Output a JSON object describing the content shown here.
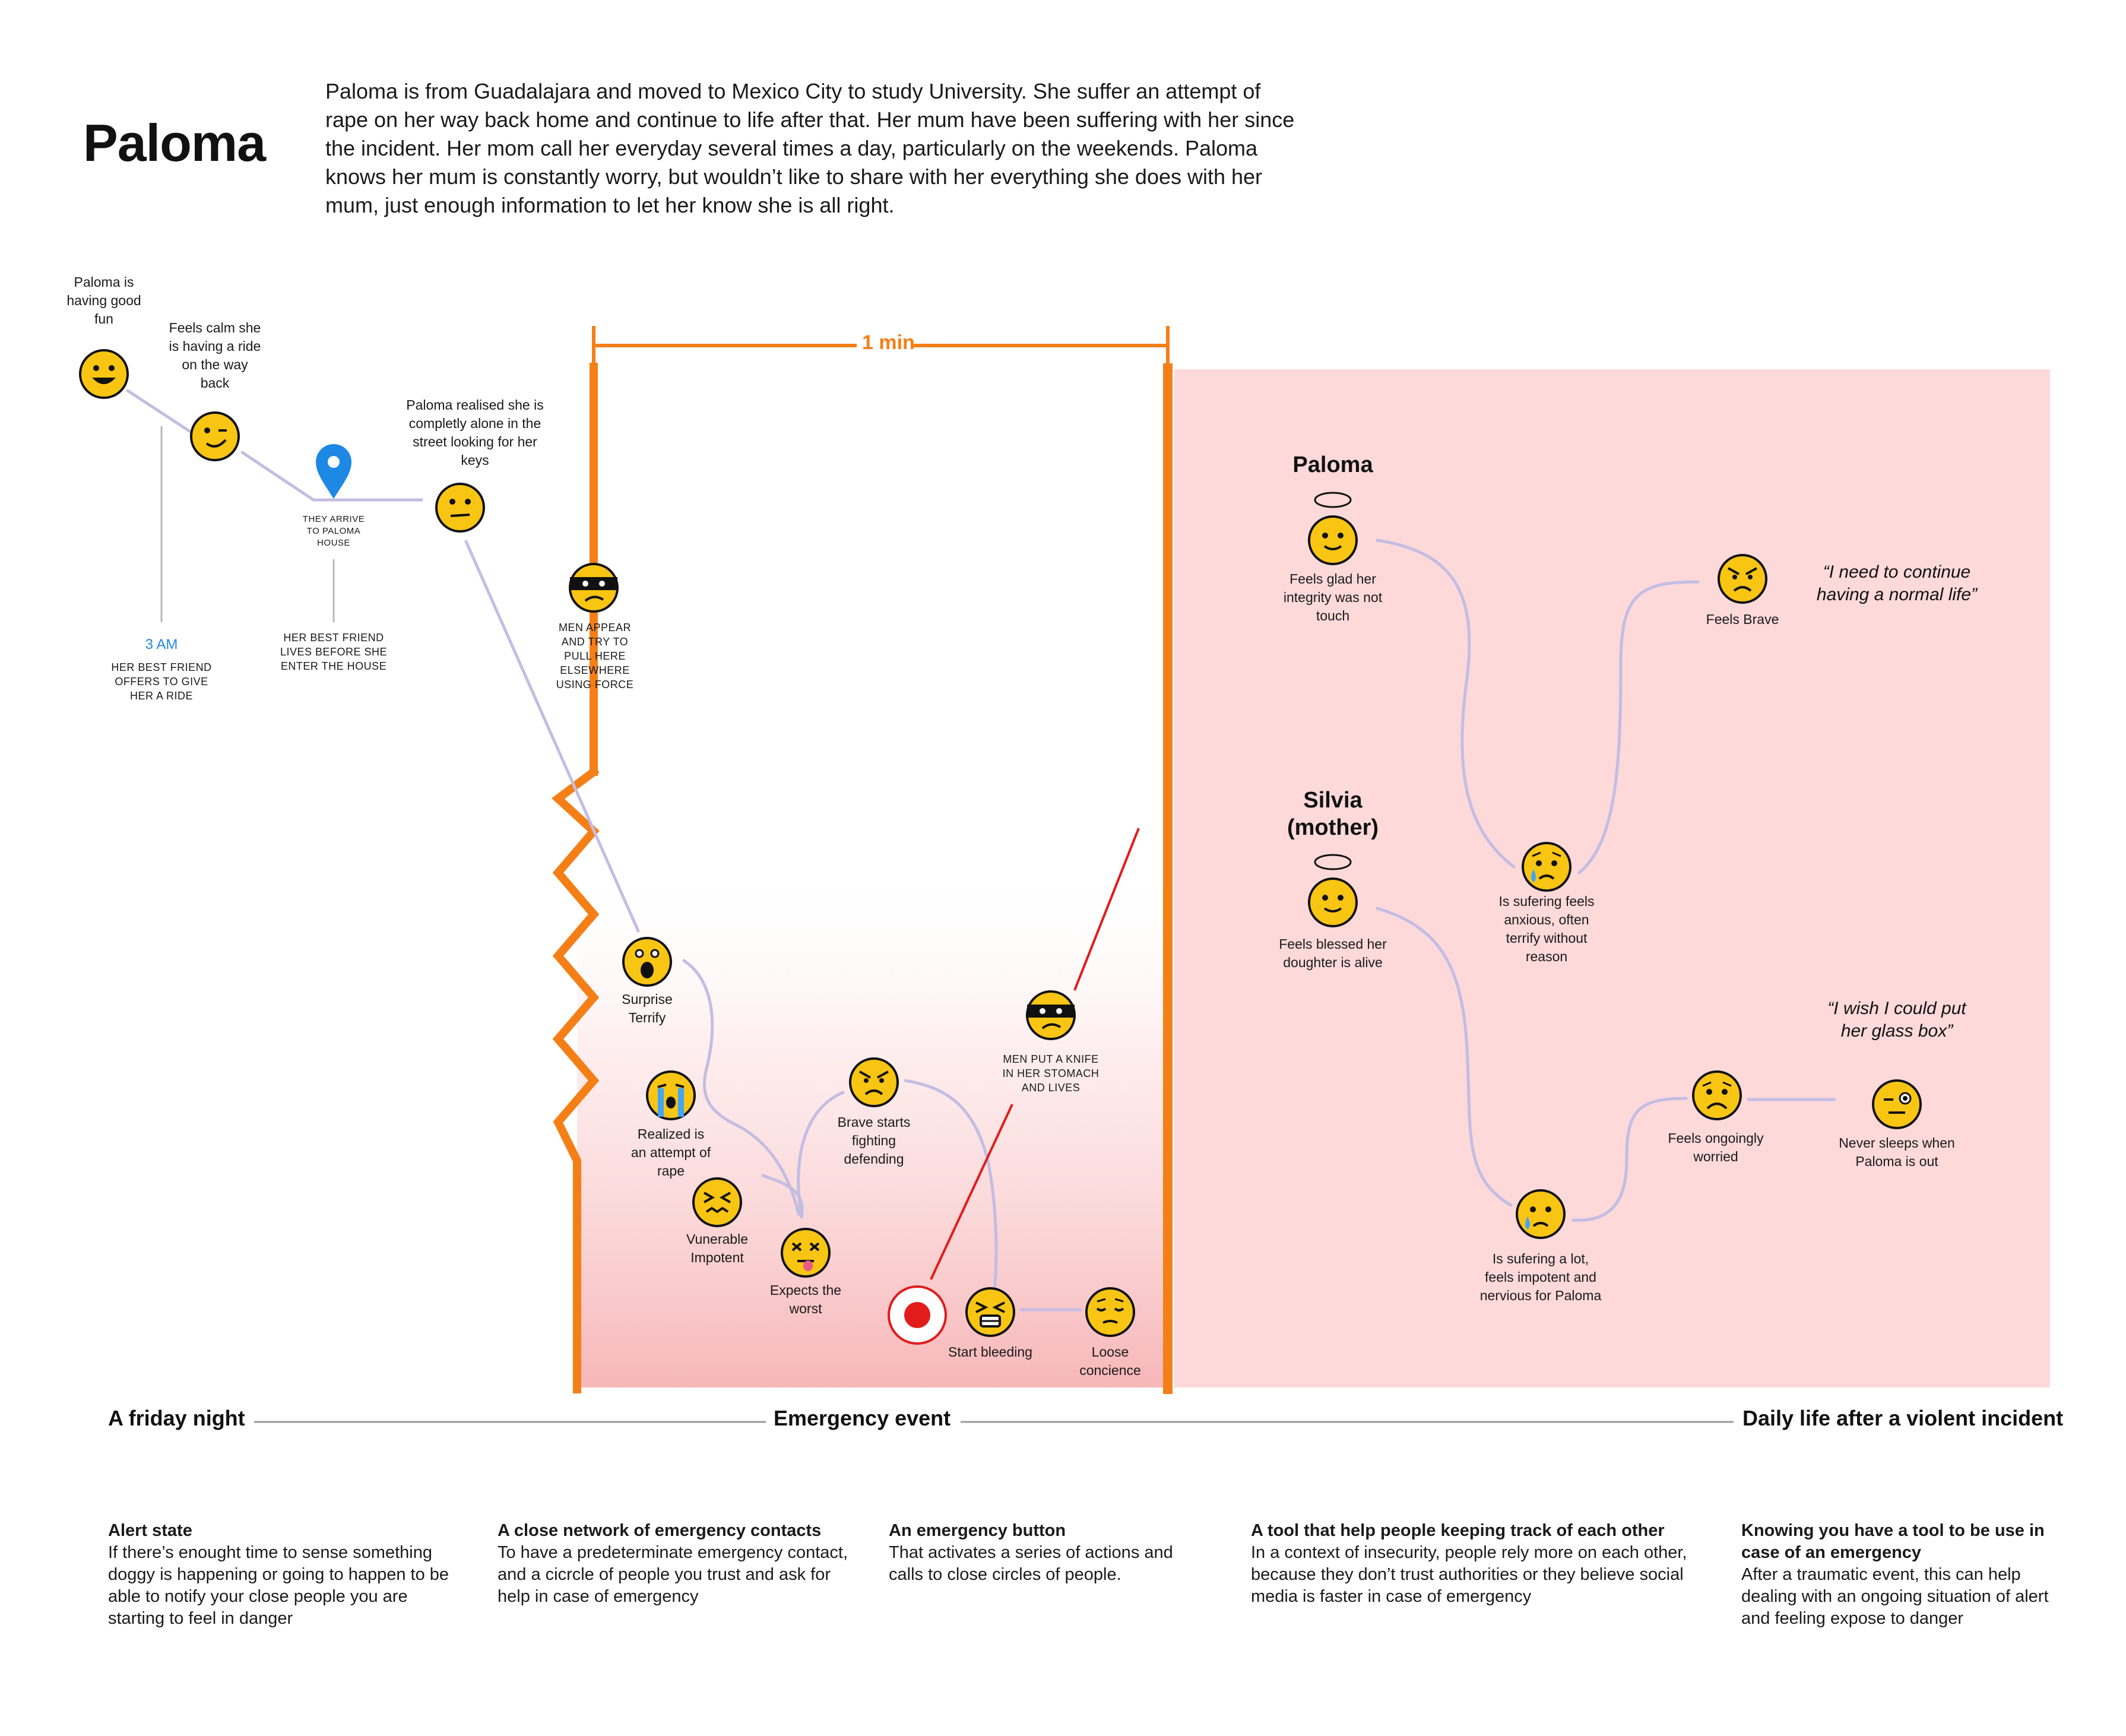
{
  "title": "Paloma",
  "intro": "Paloma is from Guadalajara and moved to Mexico City to study University. She suffer an attempt of rape on her way back home and continue to life after that. Her mum have been suffering with her since the incident. Her mom call her everyday several times a day, particularly on the weekends. Paloma knows her mum is constantly worry, but wouldn’t like to share with her everything she does with her mum, just enough information to let her know she is all right.",
  "duration": "1 min",
  "timeline": {
    "good_fun": "Paloma is having good fun",
    "calm": "Feels calm she is having a ride on the way back",
    "time": "3 AM",
    "offer": "HER BEST FRIEND OFFERS TO GIVE HER A RIDE",
    "arrive": "THEY ARRIVE TO PALOMA HOUSE",
    "friend_leaves": "HER BEST FRIEND LIVES BEFORE SHE ENTER THE HOUSE",
    "alone": "Paloma realised she is completly alone in the street looking for her keys"
  },
  "emergency": {
    "men_appear": "MEN APPEAR AND TRY TO PULL HERE ELSEWHERE USING FORCE",
    "surprise": "Surprise Terrify",
    "realized": "Realized is an attempt of rape",
    "vulnerable": "Vunerable Impotent",
    "expects": "Expects the worst",
    "brave": "Brave starts fighting defending",
    "knife": "MEN PUT A KNIFE IN HER STOMACH AND LIVES",
    "bleeding": "Start bleeding",
    "loose": "Loose concience"
  },
  "after": {
    "paloma_header": "Paloma",
    "silvia_header": "Silvia (mother)",
    "glad": "Feels glad her integrity was not touch",
    "anxious": "Is sufering feels anxious, often terrify without reason",
    "brave": "Feels Brave",
    "quote1": "“I need to continue having a normal life”",
    "blessed": "Feels blessed her doughter is alive",
    "suffering": "Is sufering a lot, feels impotent and nervious for Paloma",
    "worried": "Feels ongoingly worried",
    "never_sleeps": "Never sleeps when Paloma is out",
    "quote2": "“I wish I could put her glass box”"
  },
  "phases": {
    "p1": "A friday night",
    "p2": "Emergency event",
    "p3": "Daily life after a violent incident"
  },
  "insights": [
    {
      "title": "Alert state",
      "body": "If there’s enought time to sense something doggy is happening or going to happen to be able to notify your close people you are starting to feel in danger"
    },
    {
      "title": "A close network of emergency contacts",
      "body": "To have a predeterminate emergency contact, and a cicrcle of people you trust and ask for help in case of emergency"
    },
    {
      "title": "An emergency button",
      "body": "That activates a series of actions and calls to close circles of people."
    },
    {
      "title": "A tool that help people keeping track of each other",
      "body": "In a context of insecurity, people rely more on each other, because they don’t trust authorities or they believe social media is faster in case of emergency"
    },
    {
      "title": "Knowing you have a tool to be use in case of an emergency",
      "body": "After a traumatic event, this can help dealing with an ongoing situation of alert and feeling expose to danger"
    }
  ],
  "colors": {
    "accent_orange": "#f57f17",
    "emoji_yellow": "#f9c513",
    "path_lavender": "#c3bde3",
    "alarm_red": "#e21b1b",
    "after_bg": "#fdd9da",
    "pin_blue": "#1e88e5"
  }
}
